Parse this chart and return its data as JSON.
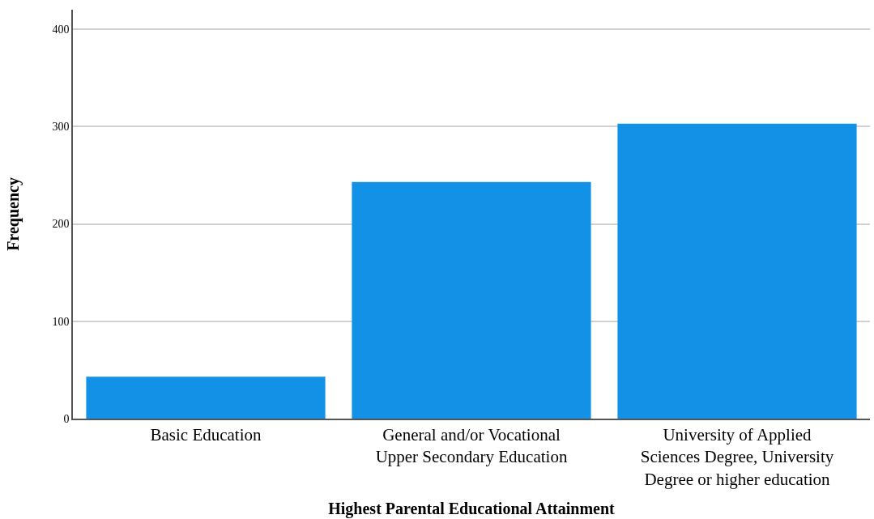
{
  "chart_data": {
    "type": "bar",
    "xlabel": "Highest Parental Educational Attainment",
    "ylabel": "Frequency",
    "categories": [
      "Basic Education",
      "General and/or Vocational Upper Secondary Education",
      "University of Applied Sciences Degree, University Degree or higher education"
    ],
    "values": [
      43,
      243,
      303
    ],
    "color": "#1391e6",
    "ylim": [
      0,
      420
    ],
    "yticks": [
      0,
      100,
      200,
      300,
      400
    ],
    "grid": "y"
  }
}
